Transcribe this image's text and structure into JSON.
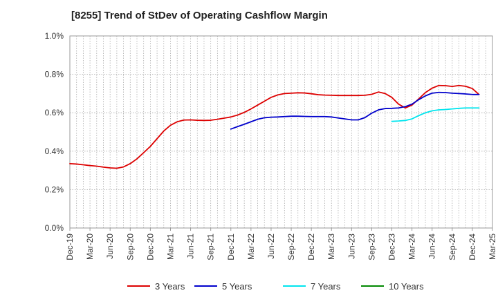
{
  "chart_data": {
    "type": "line",
    "title": "[8255]  Trend of StDev of Operating Cashflow Margin",
    "xlabel": "",
    "ylabel": "",
    "x_tick_labels": [
      "Dec-19",
      "Mar-20",
      "Jun-20",
      "Sep-20",
      "Dec-20",
      "Mar-21",
      "Jun-21",
      "Sep-21",
      "Dec-21",
      "Mar-22",
      "Jun-22",
      "Sep-22",
      "Dec-22",
      "Mar-23",
      "Jun-23",
      "Sep-23",
      "Dec-23",
      "Mar-24",
      "Jun-24",
      "Sep-24",
      "Dec-24",
      "Mar-25"
    ],
    "y_tick_labels": [
      "0.0%",
      "0.2%",
      "0.4%",
      "0.6%",
      "0.8%",
      "1.0%"
    ],
    "ylim": [
      0,
      1.0
    ],
    "grid": true,
    "legend_position": "bottom",
    "colors": {
      "axis": "#999999",
      "grid": "#aaaaaa",
      "text": "#333333"
    },
    "series": [
      {
        "name": "3 Years",
        "color": "#dd0000",
        "points": [
          [
            "Dec-19",
            0.335
          ],
          [
            "Jan-20",
            0.333
          ],
          [
            "Feb-20",
            0.329
          ],
          [
            "Mar-20",
            0.325
          ],
          [
            "Apr-20",
            0.322
          ],
          [
            "May-20",
            0.317
          ],
          [
            "Jun-20",
            0.313
          ],
          [
            "Jul-20",
            0.311
          ],
          [
            "Aug-20",
            0.318
          ],
          [
            "Sep-20",
            0.335
          ],
          [
            "Oct-20",
            0.36
          ],
          [
            "Nov-20",
            0.392
          ],
          [
            "Dec-20",
            0.425
          ],
          [
            "Jan-21",
            0.465
          ],
          [
            "Feb-21",
            0.505
          ],
          [
            "Mar-21",
            0.535
          ],
          [
            "Apr-21",
            0.553
          ],
          [
            "May-21",
            0.562
          ],
          [
            "Jun-21",
            0.563
          ],
          [
            "Jul-21",
            0.561
          ],
          [
            "Aug-21",
            0.56
          ],
          [
            "Sep-21",
            0.561
          ],
          [
            "Oct-21",
            0.566
          ],
          [
            "Nov-21",
            0.572
          ],
          [
            "Dec-21",
            0.578
          ],
          [
            "Jan-22",
            0.588
          ],
          [
            "Feb-22",
            0.602
          ],
          [
            "Mar-22",
            0.62
          ],
          [
            "Apr-22",
            0.64
          ],
          [
            "May-22",
            0.66
          ],
          [
            "Jun-22",
            0.68
          ],
          [
            "Jul-22",
            0.693
          ],
          [
            "Aug-22",
            0.7
          ],
          [
            "Sep-22",
            0.702
          ],
          [
            "Oct-22",
            0.704
          ],
          [
            "Nov-22",
            0.703
          ],
          [
            "Dec-22",
            0.699
          ],
          [
            "Jan-23",
            0.694
          ],
          [
            "Feb-23",
            0.692
          ],
          [
            "Mar-23",
            0.691
          ],
          [
            "Apr-23",
            0.69
          ],
          [
            "May-23",
            0.69
          ],
          [
            "Jun-23",
            0.69
          ],
          [
            "Jul-23",
            0.69
          ],
          [
            "Aug-23",
            0.691
          ],
          [
            "Sep-23",
            0.696
          ],
          [
            "Oct-23",
            0.708
          ],
          [
            "Nov-23",
            0.7
          ],
          [
            "Dec-23",
            0.68
          ],
          [
            "Jan-24",
            0.645
          ],
          [
            "Feb-24",
            0.625
          ],
          [
            "Mar-24",
            0.64
          ],
          [
            "Apr-24",
            0.672
          ],
          [
            "May-24",
            0.705
          ],
          [
            "Jun-24",
            0.728
          ],
          [
            "Jul-24",
            0.742
          ],
          [
            "Aug-24",
            0.741
          ],
          [
            "Sep-24",
            0.737
          ],
          [
            "Oct-24",
            0.742
          ],
          [
            "Nov-24",
            0.738
          ],
          [
            "Dec-24",
            0.726
          ],
          [
            "Jan-25",
            0.695
          ]
        ]
      },
      {
        "name": "5 Years",
        "color": "#0000cc",
        "points": [
          [
            "Dec-21",
            0.515
          ],
          [
            "Jan-22",
            0.528
          ],
          [
            "Feb-22",
            0.54
          ],
          [
            "Mar-22",
            0.553
          ],
          [
            "Apr-22",
            0.566
          ],
          [
            "May-22",
            0.574
          ],
          [
            "Jun-22",
            0.577
          ],
          [
            "Jul-22",
            0.578
          ],
          [
            "Aug-22",
            0.58
          ],
          [
            "Sep-22",
            0.582
          ],
          [
            "Oct-22",
            0.582
          ],
          [
            "Nov-22",
            0.581
          ],
          [
            "Dec-22",
            0.58
          ],
          [
            "Jan-23",
            0.58
          ],
          [
            "Feb-23",
            0.58
          ],
          [
            "Mar-23",
            0.578
          ],
          [
            "Apr-23",
            0.573
          ],
          [
            "May-23",
            0.568
          ],
          [
            "Jun-23",
            0.563
          ],
          [
            "Jul-23",
            0.563
          ],
          [
            "Aug-23",
            0.575
          ],
          [
            "Sep-23",
            0.598
          ],
          [
            "Oct-23",
            0.615
          ],
          [
            "Nov-23",
            0.622
          ],
          [
            "Dec-23",
            0.623
          ],
          [
            "Jan-24",
            0.625
          ],
          [
            "Feb-24",
            0.632
          ],
          [
            "Mar-24",
            0.645
          ],
          [
            "Apr-24",
            0.668
          ],
          [
            "May-24",
            0.688
          ],
          [
            "Jun-24",
            0.702
          ],
          [
            "Jul-24",
            0.706
          ],
          [
            "Aug-24",
            0.705
          ],
          [
            "Sep-24",
            0.702
          ],
          [
            "Oct-24",
            0.7
          ],
          [
            "Nov-24",
            0.698
          ],
          [
            "Dec-24",
            0.695
          ],
          [
            "Jan-25",
            0.695
          ]
        ]
      },
      {
        "name": "7 Years",
        "color": "#00e5ee",
        "points": [
          [
            "Dec-23",
            0.555
          ],
          [
            "Jan-24",
            0.557
          ],
          [
            "Feb-24",
            0.56
          ],
          [
            "Mar-24",
            0.568
          ],
          [
            "Apr-24",
            0.585
          ],
          [
            "May-24",
            0.6
          ],
          [
            "Jun-24",
            0.61
          ],
          [
            "Jul-24",
            0.615
          ],
          [
            "Aug-24",
            0.617
          ],
          [
            "Sep-24",
            0.62
          ],
          [
            "Oct-24",
            0.623
          ],
          [
            "Nov-24",
            0.625
          ],
          [
            "Dec-24",
            0.625
          ],
          [
            "Jan-25",
            0.625
          ]
        ]
      },
      {
        "name": "10 Years",
        "color": "#008800",
        "points": []
      }
    ]
  }
}
